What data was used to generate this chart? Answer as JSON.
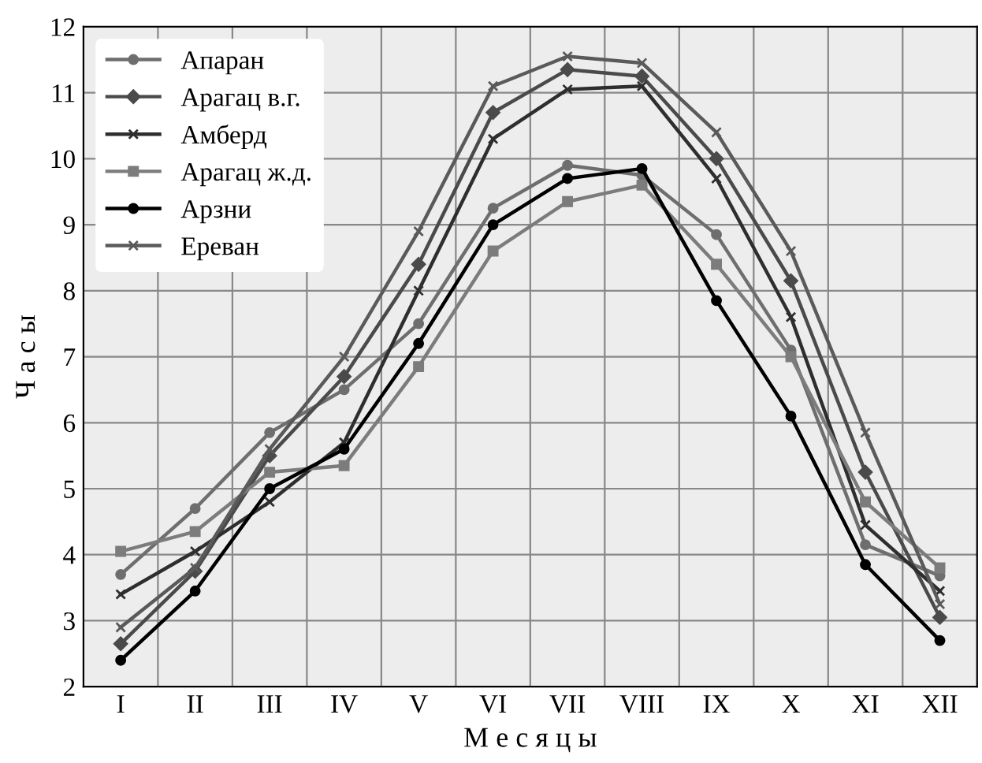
{
  "chart_data": {
    "type": "line",
    "xlabel": "М е с я ц ы",
    "ylabel": "Ч а с ы",
    "categories": [
      "I",
      "II",
      "III",
      "IV",
      "V",
      "VI",
      "VII",
      "VIII",
      "IX",
      "X",
      "XI",
      "XII"
    ],
    "ylim": [
      2,
      12
    ],
    "yticks": [
      2,
      3,
      4,
      5,
      6,
      7,
      8,
      9,
      10,
      11,
      12
    ],
    "grid": true,
    "legend": "top left",
    "series": [
      {
        "name": "Апаран",
        "color": "#6e6e6e",
        "marker": "circle",
        "values": [
          3.7,
          4.7,
          5.85,
          6.5,
          7.5,
          9.25,
          9.9,
          9.75,
          8.85,
          7.1,
          4.15,
          3.68
        ]
      },
      {
        "name": "Арагац в.г.",
        "color": "#4a4a4a",
        "marker": "diamond",
        "values": [
          2.65,
          3.75,
          5.5,
          6.7,
          8.4,
          10.7,
          11.35,
          11.25,
          10.0,
          8.15,
          5.25,
          3.05
        ]
      },
      {
        "name": "Амберд",
        "color": "#2e2e2e",
        "marker": "cross",
        "values": [
          3.4,
          4.05,
          4.8,
          5.7,
          8.0,
          10.3,
          11.05,
          11.1,
          9.7,
          7.6,
          4.45,
          3.45
        ]
      },
      {
        "name": "Арагац ж.д.",
        "color": "#7c7c7c",
        "marker": "square",
        "values": [
          4.05,
          4.35,
          5.25,
          5.35,
          6.85,
          8.6,
          9.35,
          9.6,
          8.4,
          7.0,
          4.8,
          3.8
        ]
      },
      {
        "name": "Арзни",
        "color": "#000000",
        "marker": "circle",
        "values": [
          2.4,
          3.45,
          5.0,
          5.6,
          7.2,
          9.0,
          9.7,
          9.85,
          7.85,
          6.1,
          3.85,
          2.7
        ]
      },
      {
        "name": "Ереван",
        "color": "#5a5a5a",
        "marker": "cross",
        "values": [
          2.9,
          3.8,
          5.6,
          7.0,
          8.9,
          11.1,
          11.55,
          11.45,
          10.4,
          8.6,
          5.85,
          3.25
        ]
      }
    ]
  }
}
